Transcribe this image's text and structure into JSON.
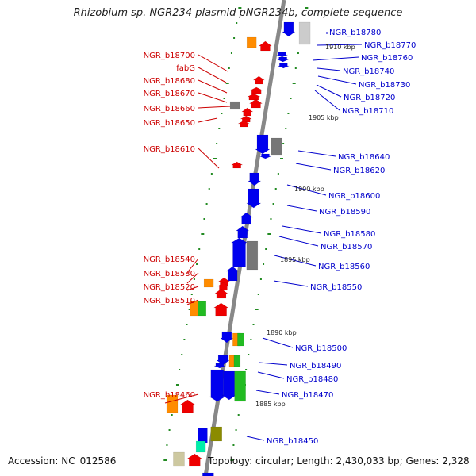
{
  "title": "Rhizobium sp. NGR234 plasmid pNGR234b, complete sequence",
  "footer": {
    "accession": "Accession: NC_012586",
    "topology": "Topology: circular; Length: 2,430,033 bp; Genes: 2,328"
  },
  "colors": {
    "left_label": "#cc0000",
    "right_label": "#0000cc",
    "axis": "#888888",
    "tick": "#228b22",
    "blue": "#0000ee",
    "red": "#ee0000",
    "orange": "#ff8c00",
    "green": "#22bb22",
    "gray": "#777777",
    "lightgray": "#cccccc",
    "olive": "#8b8b00",
    "teal": "#00eeaa",
    "khaki": "#cdc8a0"
  },
  "scale_labels": [
    "1910 kbp",
    "1905 kbp",
    "1900 kbp",
    "1895 kbp",
    "1890 kbp",
    "1885 kbp"
  ],
  "left_genes": [
    "NGR_b18700",
    "fabG",
    "NGR_b18680",
    "NGR_b18670",
    "NGR_b18660",
    "NGR_b18650",
    "NGR_b18610",
    "NGR_b18540",
    "NGR_b18530",
    "NGR_b18520",
    "NGR_b18510",
    "NGR_b18460"
  ],
  "right_genes": [
    "NGR_b18780",
    "NGR_b18770",
    "NGR_b18760",
    "NGR_b18740",
    "NGR_b18730",
    "NGR_b18720",
    "NGR_b18710",
    "NGR_b18640",
    "NGR_b18620",
    "NGR_b18600",
    "NGR_b18590",
    "NGR_b18580",
    "NGR_b18570",
    "NGR_b18560",
    "NGR_b18550",
    "NGR_b18500",
    "NGR_b18490",
    "NGR_b18480",
    "NGR_b18470",
    "NGR_b18450"
  ]
}
